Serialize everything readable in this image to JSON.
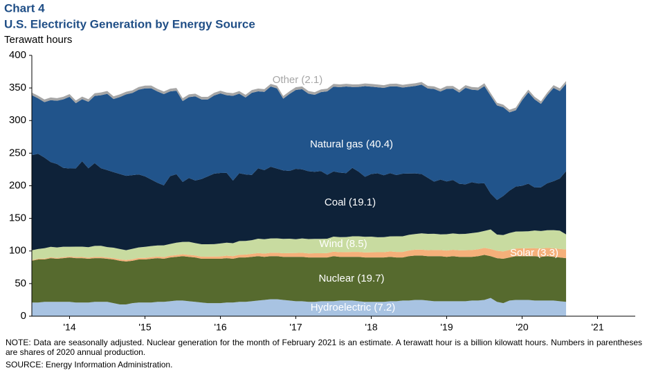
{
  "chart_data": {
    "type": "stacked_area",
    "label": "Chart 4",
    "title": "U.S. Electricity Generation by Energy Source",
    "y_label": "Terawatt hours",
    "note": "NOTE: Data are seasonally adjusted. Nuclear generation for the month of February 2021 is an estimate. A terawatt hour is a billion kilowatt hours. Numbers in parentheses are shares of 2020 annual production.",
    "source": "SOURCE: Energy Information  Administration.",
    "xlim": [
      2014,
      2022
    ],
    "xticks": [
      {
        "value": 2014.5,
        "label": "'14"
      },
      {
        "value": 2015.5,
        "label": "'15"
      },
      {
        "value": 2016.5,
        "label": "'16"
      },
      {
        "value": 2017.5,
        "label": "'17"
      },
      {
        "value": 2018.5,
        "label": "'18"
      },
      {
        "value": 2019.5,
        "label": "'19"
      },
      {
        "value": 2020.5,
        "label": "'20"
      },
      {
        "value": 2021.5,
        "label": "'21"
      }
    ],
    "ylim": [
      0,
      400
    ],
    "yticks": [
      0,
      50,
      100,
      150,
      200,
      250,
      300,
      350,
      400
    ],
    "x": [
      2014,
      2014.083,
      2014.167,
      2014.25,
      2014.333,
      2014.417,
      2014.5,
      2014.583,
      2014.667,
      2014.75,
      2014.833,
      2014.917,
      2015,
      2015.083,
      2015.167,
      2015.25,
      2015.333,
      2015.417,
      2015.5,
      2015.583,
      2015.667,
      2015.75,
      2015.833,
      2015.917,
      2016,
      2016.083,
      2016.167,
      2016.25,
      2016.333,
      2016.417,
      2016.5,
      2016.583,
      2016.667,
      2016.75,
      2016.833,
      2016.917,
      2017,
      2017.083,
      2017.167,
      2017.25,
      2017.333,
      2017.417,
      2017.5,
      2017.583,
      2017.667,
      2017.75,
      2017.833,
      2017.917,
      2018,
      2018.083,
      2018.167,
      2018.25,
      2018.333,
      2018.417,
      2018.5,
      2018.583,
      2018.667,
      2018.75,
      2018.833,
      2018.917,
      2019,
      2019.083,
      2019.167,
      2019.25,
      2019.333,
      2019.417,
      2019.5,
      2019.583,
      2019.667,
      2019.75,
      2019.833,
      2019.917,
      2020,
      2020.083,
      2020.167,
      2020.25,
      2020.333,
      2020.417,
      2020.5,
      2020.583,
      2020.667,
      2020.75,
      2020.833,
      2020.917,
      2021,
      2021.083
    ],
    "series": [
      {
        "name": "Hydroelectric (7.2)",
        "color": "#a8c3e2",
        "values": [
          21,
          21,
          22,
          22,
          22,
          22,
          22,
          21,
          21,
          21,
          22,
          22,
          22,
          20,
          18,
          18,
          20,
          21,
          21,
          21,
          22,
          22,
          23,
          24,
          24,
          23,
          22,
          21,
          20,
          20,
          20,
          21,
          21,
          22,
          22,
          23,
          24,
          25,
          26,
          26,
          25,
          24,
          23,
          23,
          22,
          22,
          23,
          23,
          23,
          24,
          24,
          24,
          23,
          22,
          22,
          22,
          22,
          23,
          23,
          24,
          24,
          25,
          25,
          24,
          23,
          23,
          23,
          23,
          23,
          23,
          24,
          24,
          25,
          28,
          22,
          20,
          24,
          25,
          25,
          25,
          24,
          24,
          24,
          24,
          23,
          22
        ]
      },
      {
        "name": "Nuclear (19.7)",
        "color": "#566a2e",
        "values": [
          64,
          66,
          65,
          67,
          66,
          67,
          68,
          68,
          68,
          67,
          67,
          67,
          66,
          67,
          67,
          66,
          65,
          66,
          66,
          67,
          67,
          66,
          67,
          67,
          68,
          68,
          68,
          67,
          68,
          68,
          68,
          68,
          67,
          68,
          68,
          68,
          68,
          66,
          66,
          66,
          66,
          67,
          68,
          68,
          68,
          68,
          67,
          67,
          69,
          67,
          67,
          67,
          68,
          68,
          68,
          68,
          68,
          68,
          67,
          66,
          68,
          68,
          68,
          68,
          69,
          69,
          68,
          69,
          68,
          68,
          67,
          68,
          69,
          64,
          67,
          68,
          66,
          67,
          67,
          67,
          68,
          67,
          68,
          67,
          67,
          67
        ]
      },
      {
        "name": "Solar (3.3)",
        "color": "#f5b07a",
        "values": [
          1,
          1.1,
          1.2,
          1.3,
          1.4,
          1.5,
          1.5,
          1.6,
          1.7,
          1.8,
          1.8,
          1.9,
          2,
          2,
          2.1,
          2.2,
          2.3,
          2.4,
          2.4,
          2.5,
          2.5,
          2.6,
          2.7,
          2.8,
          2.9,
          3,
          3.1,
          3.3,
          3.4,
          3.5,
          3.6,
          3.8,
          4,
          4.2,
          4.4,
          4.6,
          4.8,
          5,
          5.2,
          5.4,
          5.6,
          5.8,
          6,
          6.2,
          6.3,
          6.5,
          6.6,
          6.8,
          7,
          7.2,
          7.3,
          7.5,
          7.6,
          7.8,
          8,
          8.1,
          8.2,
          8.4,
          8.5,
          8.6,
          8.8,
          9,
          9.1,
          9.2,
          9.4,
          9.5,
          9.7,
          9.9,
          10,
          10.2,
          10.4,
          10.6,
          10.8,
          11,
          11.2,
          11.4,
          11.6,
          11.8,
          12,
          12.2,
          12.4,
          12.6,
          12.8,
          13,
          13.2,
          13.4
        ]
      },
      {
        "name": "Wind (8.5)",
        "color": "#c8dba0",
        "values": [
          15,
          15,
          16,
          16,
          16,
          16,
          15,
          16,
          16,
          16,
          17,
          17,
          16,
          16,
          16,
          15,
          16,
          16,
          17,
          17,
          17,
          18,
          18,
          19,
          19,
          20,
          19,
          19,
          19,
          19,
          20,
          20,
          20,
          21,
          21,
          21,
          22,
          22,
          22,
          22,
          22,
          22,
          21,
          22,
          22,
          22,
          22,
          22,
          23,
          23,
          23,
          24,
          24,
          24,
          24,
          23,
          23,
          23,
          24,
          24,
          24,
          24,
          25,
          25,
          25,
          24,
          25,
          25,
          25,
          25,
          26,
          26,
          26,
          30,
          25,
          25,
          26,
          26,
          26,
          26,
          27,
          27,
          27,
          28,
          28,
          23
        ]
      },
      {
        "name": "Coal (19.1)",
        "color": "#0e2239",
        "values": [
          146,
          146,
          139,
          130,
          128,
          121,
          120,
          120,
          131,
          121,
          127,
          119,
          118,
          116,
          115,
          114,
          113,
          112,
          108,
          102,
          96,
          92,
          104,
          105,
          92,
          98,
          96,
          100,
          104,
          108,
          108,
          107,
          96,
          104,
          102,
          100,
          108,
          106,
          110,
          107,
          105,
          104,
          108,
          106,
          104,
          103,
          104,
          98,
          100,
          99,
          98,
          105,
          99,
          92,
          96,
          98,
          95,
          97,
          94,
          96,
          94,
          93,
          91,
          86,
          80,
          84,
          81,
          82,
          77,
          76,
          78,
          75,
          73,
          55,
          53,
          60,
          65,
          69,
          70,
          73,
          66,
          67,
          72,
          75,
          80,
          97
        ]
      },
      {
        "name": "Natural gas (40.4)",
        "color": "#21548b",
        "values": [
          92,
          85,
          85,
          95,
          97,
          105,
          110,
          100,
          95,
          102,
          103,
          112,
          117,
          112,
          118,
          125,
          126,
          130,
          135,
          140,
          140,
          140,
          130,
          128,
          124,
          124,
          129,
          122,
          118,
          120,
          122,
          119,
          130,
          122,
          118,
          126,
          118,
          120,
          123,
          123,
          110,
          118,
          121,
          123,
          119,
          118,
          121,
          128,
          130,
          131,
          133,
          124,
          130,
          139,
          134,
          132,
          134,
          133,
          136,
          132,
          133,
          134,
          137,
          137,
          142,
          135,
          142,
          140,
          140,
          148,
          142,
          143,
          149,
          150,
          145,
          136,
          120,
          117,
          131,
          140,
          135,
          128,
          135,
          143,
          134,
          134
        ]
      },
      {
        "name": "Other (2.1)",
        "color": "#a6a6a6",
        "values": [
          4,
          4,
          4.2,
          4.1,
          4,
          4,
          4.1,
          4.2,
          4,
          4,
          4.1,
          4.2,
          4.3,
          4.2,
          4.1,
          4,
          4,
          4.1,
          4.2,
          4.2,
          4,
          4,
          4.1,
          4.2,
          4.3,
          4.2,
          4.1,
          4,
          4,
          4.1,
          4.2,
          4.2,
          4,
          4,
          4.1,
          4.2,
          4.3,
          4.2,
          4.1,
          4,
          4,
          4.1,
          4.2,
          4.2,
          4,
          4,
          4.1,
          4.2,
          4.3,
          4.2,
          4.1,
          4,
          4,
          4.1,
          4.2,
          4.2,
          4,
          4,
          4.1,
          4.2,
          4.3,
          4.2,
          4.1,
          4,
          4,
          4.1,
          4.2,
          4.2,
          4,
          4,
          4.1,
          4.2,
          4.3,
          4.2,
          4.1,
          4,
          4,
          4.1,
          4.2,
          4.2,
          4,
          4,
          4.1,
          4.2,
          4.3,
          4.2
        ]
      }
    ]
  }
}
